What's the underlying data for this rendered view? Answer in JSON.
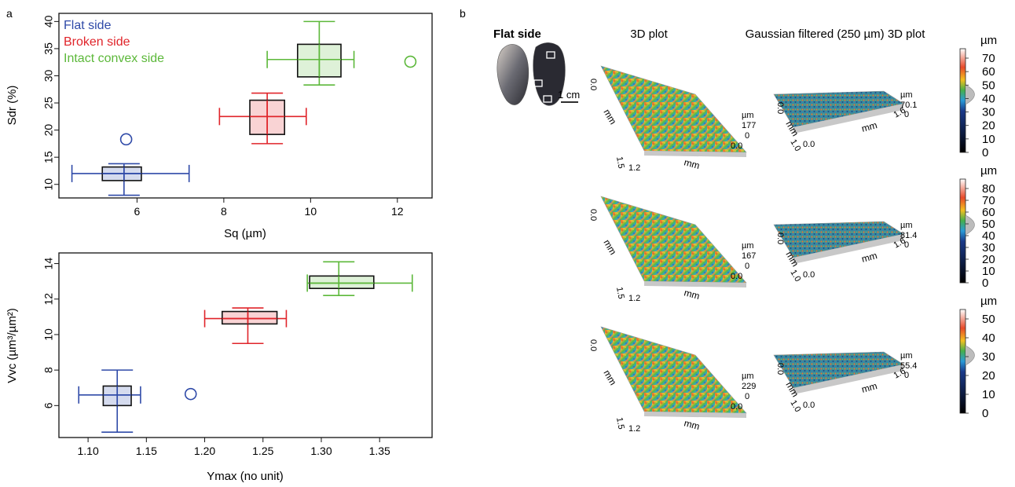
{
  "panel_labels": {
    "a": "a",
    "b": "b"
  },
  "colors": {
    "flat": "#2f4aa8",
    "broken": "#e0242a",
    "intact": "#5cb83a"
  },
  "legend": [
    {
      "name": "Flat side",
      "key": "flat"
    },
    {
      "name": "Broken side",
      "key": "broken"
    },
    {
      "name": "Intact convex side",
      "key": "intact"
    }
  ],
  "chart_data": [
    {
      "type": "box",
      "xlabel": "Sq (µm)",
      "ylabel": "Sdr (%)",
      "xlim": [
        4.2,
        12.8
      ],
      "ylim": [
        7.5,
        41.5
      ],
      "xticks": [
        6,
        8,
        10,
        12
      ],
      "yticks": [
        10,
        15,
        20,
        25,
        30,
        35,
        40
      ],
      "series": [
        {
          "name": "Flat side",
          "key": "flat",
          "x": {
            "q1": 5.2,
            "median": 5.7,
            "q3": 6.1,
            "min": 4.5,
            "max": 7.2
          },
          "y": {
            "q1": 10.7,
            "median": 12.0,
            "q3": 13.2,
            "min": 8.0,
            "max": 13.8
          },
          "outliers": [
            [
              5.75,
              18.3
            ]
          ]
        },
        {
          "name": "Broken side",
          "key": "broken",
          "x": {
            "q1": 8.6,
            "median": 9.0,
            "q3": 9.4,
            "min": 7.9,
            "max": 9.9
          },
          "y": {
            "q1": 19.2,
            "median": 22.5,
            "q3": 25.5,
            "min": 17.5,
            "max": 26.8
          },
          "outliers": []
        },
        {
          "name": "Intact convex side",
          "key": "intact",
          "x": {
            "q1": 9.7,
            "median": 10.2,
            "q3": 10.7,
            "min": 9.0,
            "max": 11.0
          },
          "y": {
            "q1": 29.8,
            "median": 33.0,
            "q3": 35.8,
            "min": 28.3,
            "max": 40.0
          },
          "outliers": [
            [
              12.3,
              32.6
            ]
          ]
        }
      ]
    },
    {
      "type": "box",
      "xlabel": "Ymax (no unit)",
      "ylabel": "Vvc (µm³/µm²)",
      "xlim": [
        1.075,
        1.395
      ],
      "ylim": [
        4.2,
        14.6
      ],
      "xticks": [
        1.1,
        1.15,
        1.2,
        1.25,
        1.3,
        1.35
      ],
      "xtick_labels": [
        "1.10",
        "1.15",
        "1.20",
        "1.25",
        "1.30",
        "1.35"
      ],
      "yticks": [
        6,
        8,
        10,
        12,
        14
      ],
      "series": [
        {
          "name": "Flat side",
          "key": "flat",
          "x": {
            "q1": 1.113,
            "median": 1.125,
            "q3": 1.137,
            "min": 1.092,
            "max": 1.145
          },
          "y": {
            "q1": 6.0,
            "median": 6.6,
            "q3": 7.1,
            "min": 4.5,
            "max": 8.0
          },
          "outliers": [
            [
              1.188,
              6.65
            ]
          ]
        },
        {
          "name": "Broken side",
          "key": "broken",
          "x": {
            "q1": 1.215,
            "median": 1.237,
            "q3": 1.262,
            "min": 1.2,
            "max": 1.27
          },
          "y": {
            "q1": 10.6,
            "median": 10.9,
            "q3": 11.3,
            "min": 9.5,
            "max": 11.5
          },
          "outliers": []
        },
        {
          "name": "Intact convex side",
          "key": "intact",
          "x": {
            "q1": 1.29,
            "median": 1.315,
            "q3": 1.345,
            "min": 1.288,
            "max": 1.378
          },
          "y": {
            "q1": 12.6,
            "median": 12.9,
            "q3": 13.3,
            "min": 12.2,
            "max": 14.1
          },
          "outliers": []
        }
      ]
    }
  ],
  "panel_b": {
    "sample_title": "Flat side",
    "scale_bar": "1 cm",
    "col1_title": "3D plot",
    "col2_title": "Gaussian filtered (250 µm) 3D plot",
    "axis_mm": "mm",
    "tick_00": "0.0",
    "tick_15": "1.5",
    "tick_12": "1.2",
    "tick_16": "1.6",
    "tick_10": "1.0",
    "height_unit": "µm",
    "rows": [
      {
        "raw_height": "177",
        "filtered_height": "70.1",
        "zero": "0",
        "colorbar_unit": "µm",
        "colorbar_ticks": [
          "70",
          "60",
          "50",
          "40",
          "30",
          "20",
          "10",
          "0"
        ]
      },
      {
        "raw_height": "167",
        "filtered_height": "81.4",
        "zero": "0",
        "colorbar_unit": "µm",
        "colorbar_ticks": [
          "80",
          "70",
          "60",
          "50",
          "40",
          "30",
          "20",
          "10",
          "0"
        ]
      },
      {
        "raw_height": "229",
        "filtered_height": "55.4",
        "zero": "0",
        "colorbar_unit": "µm",
        "colorbar_ticks": [
          "50",
          "40",
          "30",
          "20",
          "10",
          "0"
        ]
      }
    ]
  }
}
